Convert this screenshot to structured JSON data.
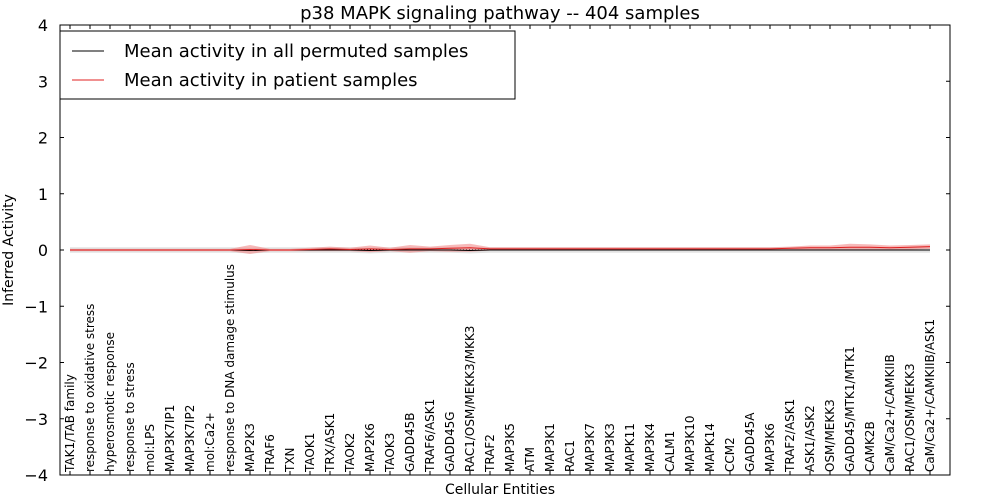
{
  "chart_data": {
    "type": "line",
    "title": "p38 MAPK signaling pathway -- 404 samples",
    "xlabel": "Cellular Entities",
    "ylabel": "Inferred Activity",
    "ylim": [
      -4,
      4
    ],
    "yticks": [
      "4",
      "3",
      "2",
      "1",
      "0",
      "−1",
      "−2",
      "−3",
      "−4"
    ],
    "ytick_values": [
      4,
      3,
      2,
      1,
      0,
      -1,
      -2,
      -3,
      -4
    ],
    "grid": false,
    "legend_position": "top-left",
    "categories": [
      "TAK1/TAB family",
      "response to oxidative stress",
      "hyperosmotic response",
      "response to stress",
      "mol:LPS",
      "MAP3K7IP1",
      "MAP3K7IP2",
      "mol:Ca2+",
      "response to DNA damage stimulus",
      "MAP2K3",
      "TRAF6",
      "TXN",
      "TAOK1",
      "TRX/ASK1",
      "TAOK2",
      "MAP2K6",
      "TAOK3",
      "GADD45B",
      "TRAF6/ASK1",
      "GADD45G",
      "RAC1/OSM/MEKK3/MKK3",
      "TRAF2",
      "MAP3K5",
      "ATM",
      "MAP3K1",
      "RAC1",
      "MAP3K7",
      "MAP3K3",
      "MAPK11",
      "MAP3K4",
      "CALM1",
      "MAP3K10",
      "MAPK14",
      "CCM2",
      "GADD45A",
      "MAP3K6",
      "TRAF2/ASK1",
      "ASK1/ASK2",
      "OSM/MEKK3",
      "GADD45/MTK1/MTK1",
      "CAMK2B",
      "CaM/Ca2+/CAMKIIB",
      "RAC1/OSM/MEKK3",
      "CaM/Ca2+/CAMKIIB/ASK1"
    ],
    "series": [
      {
        "name": "Mean activity in all permuted samples",
        "color": "#000000",
        "values": [
          0,
          0,
          0,
          0,
          0,
          0,
          0,
          0,
          0,
          -0.01,
          0,
          0,
          0,
          0,
          0,
          -0.01,
          0,
          0,
          0,
          0,
          -0.01,
          0,
          0,
          0,
          0,
          0,
          0,
          0,
          0,
          0,
          0,
          0,
          0,
          0,
          0,
          0,
          0,
          0,
          0,
          0,
          0,
          0,
          0,
          0
        ],
        "band": 0.05,
        "band_color": "#bfbfbf"
      },
      {
        "name": "Mean activity in patient samples",
        "color": "#e02020",
        "values": [
          0,
          0,
          0,
          0,
          0,
          0,
          0,
          0,
          0,
          0.01,
          0,
          0,
          0.01,
          0.02,
          0.01,
          0.02,
          0.01,
          0.02,
          0.02,
          0.03,
          0.04,
          0.02,
          0.02,
          0.02,
          0.02,
          0.02,
          0.02,
          0.02,
          0.02,
          0.02,
          0.02,
          0.02,
          0.02,
          0.02,
          0.02,
          0.02,
          0.03,
          0.04,
          0.04,
          0.05,
          0.05,
          0.04,
          0.05,
          0.06
        ],
        "band": [
          0.02,
          0.02,
          0.02,
          0.02,
          0.02,
          0.02,
          0.02,
          0.02,
          0.02,
          0.08,
          0.02,
          0.02,
          0.03,
          0.04,
          0.03,
          0.06,
          0.03,
          0.07,
          0.04,
          0.06,
          0.07,
          0.03,
          0.03,
          0.03,
          0.03,
          0.03,
          0.03,
          0.03,
          0.03,
          0.03,
          0.03,
          0.03,
          0.03,
          0.03,
          0.03,
          0.03,
          0.03,
          0.04,
          0.04,
          0.06,
          0.05,
          0.04,
          0.04,
          0.04
        ],
        "band_color": "#f08080"
      }
    ],
    "reference_line": 0
  }
}
